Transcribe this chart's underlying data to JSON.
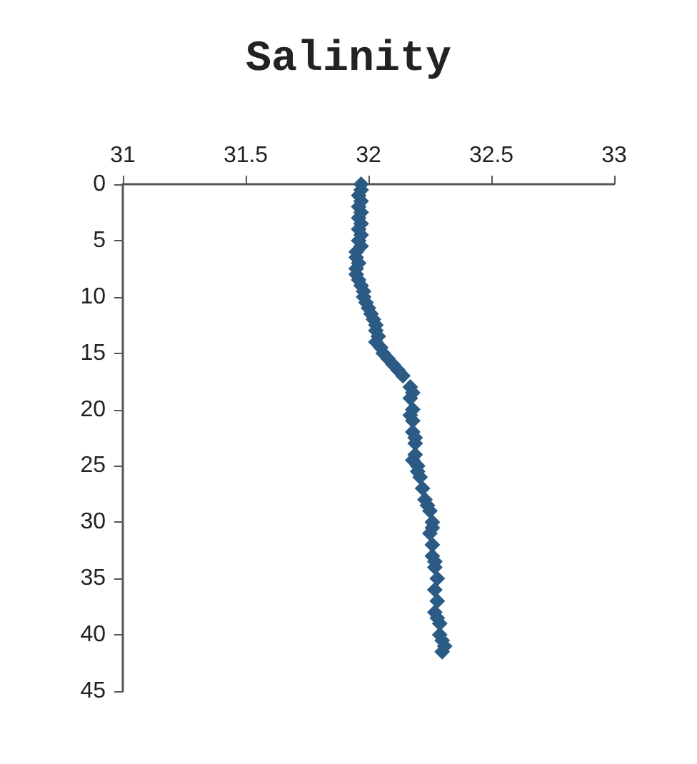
{
  "chart_data": {
    "type": "scatter",
    "title": "Salinity",
    "x": [
      31.97,
      31.97,
      31.96,
      31.97,
      31.96,
      31.97,
      31.96,
      31.97,
      31.96,
      31.97,
      31.96,
      31.97,
      31.95,
      31.95,
      31.96,
      31.95,
      31.95,
      31.96,
      31.97,
      31.98,
      31.98,
      31.99,
      32.0,
      32.01,
      32.02,
      32.03,
      32.03,
      32.04,
      32.03,
      32.05,
      32.06,
      32.08,
      32.1,
      32.12,
      32.14,
      32.17,
      32.18,
      32.17,
      32.18,
      32.17,
      32.18,
      32.18,
      32.19,
      32.19,
      32.19,
      32.18,
      32.2,
      32.2,
      32.21,
      32.22,
      32.23,
      32.24,
      32.25,
      32.26,
      32.26,
      32.25,
      32.26,
      32.26,
      32.27,
      32.27,
      32.28,
      32.27,
      32.28,
      32.27,
      32.28,
      32.29,
      32.29,
      32.3,
      32.31,
      32.3
    ],
    "series": [
      {
        "color": "#2b5b84",
        "values": [
          0,
          0.5,
          1,
          1.5,
          2,
          2.5,
          3,
          3.5,
          4,
          4.5,
          5,
          5.5,
          6,
          6.5,
          7,
          7.5,
          8,
          8.5,
          9,
          9.5,
          10,
          10.5,
          11,
          11.5,
          12,
          12.5,
          13,
          13.5,
          14,
          14.5,
          15,
          15.5,
          16,
          16.5,
          17,
          18,
          18.5,
          19,
          20,
          20.5,
          21,
          22,
          22.5,
          23,
          24,
          24.5,
          25,
          25.5,
          26,
          27,
          28,
          28.5,
          29,
          30,
          30.5,
          31,
          32,
          33,
          33.5,
          34,
          35,
          36,
          37,
          38,
          38.5,
          39,
          40,
          40.5,
          41,
          41.5
        ]
      }
    ],
    "xlim": [
      31,
      33
    ],
    "xticks": [
      31,
      31.5,
      32,
      32.5,
      33
    ],
    "ylim": [
      45,
      0
    ],
    "yticks": [
      0,
      5,
      10,
      15,
      20,
      25,
      30,
      35,
      40,
      45
    ],
    "marker": "diamond",
    "grid": false
  }
}
